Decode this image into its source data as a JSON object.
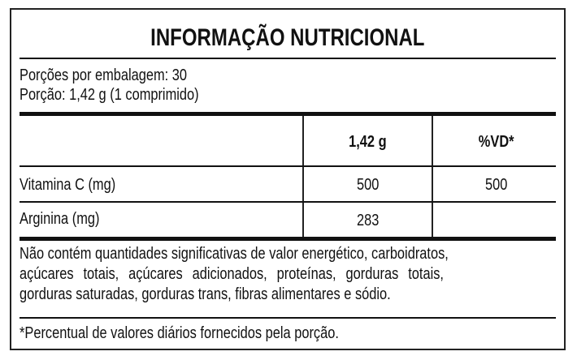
{
  "title": "INFORMAÇÃO NUTRICIONAL",
  "servings_per_package": "Porções por embalagem: 30",
  "serving_size": "Porção: 1,42 g (1 comprimido)",
  "columns": {
    "amount": "1,42 g",
    "dv": "%VD*"
  },
  "rows": [
    {
      "name": "Vitamina C (mg)",
      "amount": "500",
      "dv": "500"
    },
    {
      "name": "Arginina (mg)",
      "amount": "283",
      "dv": ""
    }
  ],
  "notes": [
    "Não contém quantidades significativas de valor energético, carboidratos,",
    "açúcares totais, açúcares adicionados, proteínas, gorduras totais,",
    "gorduras saturadas, gorduras trans, fibras alimentares e sódio."
  ],
  "footnote": "*Percentual de valores diários fornecidos pela porção."
}
